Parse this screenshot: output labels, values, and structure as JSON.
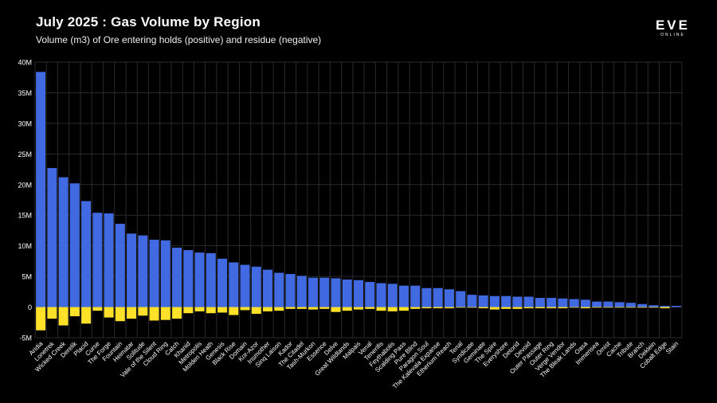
{
  "header": {
    "title": "July 2025 : Gas Volume by Region",
    "subtitle": "Volume (m3) of Ore entering holds (positive) and residue (negative)"
  },
  "logo": {
    "main": "EVE",
    "sub": "ONLINE"
  },
  "colors": {
    "background": "#000000",
    "positive": "#4169e1",
    "negative": "#ffe12a",
    "grid": "#2a2a2a",
    "text": "#ffffff"
  },
  "chart_data": {
    "type": "bar",
    "title": "July 2025 : Gas Volume by Region",
    "subtitle": "Volume (m3) of Ore entering holds (positive) and residue (negative)",
    "xlabel": "",
    "ylabel": "",
    "ylim": [
      -5000000,
      40000000
    ],
    "yticks": [
      -5000000,
      0,
      5000000,
      10000000,
      15000000,
      20000000,
      25000000,
      30000000,
      35000000,
      40000000
    ],
    "ytick_labels": [
      "-5M",
      "0",
      "5M",
      "10M",
      "15M",
      "20M",
      "25M",
      "30M",
      "35M",
      "40M"
    ],
    "grid": true,
    "legend": "none",
    "categories": [
      "Aridia",
      "Lonetrek",
      "Wicked Creek",
      "Derelik",
      "Placid",
      "Curse",
      "The Forge",
      "Fountain",
      "Heimatar",
      "Solitude",
      "Vale of the Silent",
      "Cloud Ring",
      "Catch",
      "Khanid",
      "Metropolis",
      "Molden Heath",
      "Genesis",
      "Black Rise",
      "Domain",
      "Kor-Azor",
      "Insmother",
      "Sinq Laison",
      "Kador",
      "The Citadel",
      "Tash-Murkon",
      "Essence",
      "Delve",
      "Great Wildlands",
      "Malpais",
      "Venal",
      "Tenerifis",
      "Feythabolis",
      "Scalding Pass",
      "Pure Blind",
      "Paragon Soul",
      "The Kalevala Expanse",
      "Etherium Reach",
      "Tenal",
      "Syndicate",
      "Geminate",
      "The Spire",
      "Everyshore",
      "Detorid",
      "Devoid",
      "Outer Passage",
      "Outer Ring",
      "Verge Vendor",
      "The Bleak Lands",
      "Oasa",
      "Immensea",
      "Omist",
      "Cache",
      "Tribute",
      "Branch",
      "Deklein",
      "Cobalt Edge",
      "Stain"
    ],
    "series": [
      {
        "name": "Volume entering holds",
        "values": [
          38400000,
          22700000,
          21200000,
          20200000,
          17300000,
          15400000,
          15300000,
          13600000,
          12000000,
          11700000,
          11000000,
          10900000,
          9700000,
          9300000,
          8900000,
          8800000,
          7900000,
          7300000,
          6900000,
          6600000,
          6100000,
          5600000,
          5400000,
          5100000,
          4800000,
          4800000,
          4700000,
          4500000,
          4400000,
          4100000,
          3900000,
          3800000,
          3500000,
          3500000,
          3100000,
          3100000,
          2900000,
          2600000,
          2000000,
          1900000,
          1800000,
          1800000,
          1700000,
          1700000,
          1500000,
          1500000,
          1400000,
          1300000,
          1200000,
          900000,
          900000,
          800000,
          700000,
          500000,
          300000,
          200000,
          200000
        ]
      },
      {
        "name": "Residue",
        "values": [
          -3800000,
          -1900000,
          -3000000,
          -1500000,
          -2700000,
          -600000,
          -1700000,
          -2300000,
          -1900000,
          -1400000,
          -2200000,
          -2100000,
          -1900000,
          -1000000,
          -700000,
          -1000000,
          -900000,
          -1300000,
          -500000,
          -1100000,
          -700000,
          -600000,
          -300000,
          -300000,
          -400000,
          -300000,
          -800000,
          -600000,
          -400000,
          -300000,
          -600000,
          -700000,
          -600000,
          -300000,
          -200000,
          -200000,
          -200000,
          -100000,
          -100000,
          -200000,
          -400000,
          -300000,
          -300000,
          -200000,
          -200000,
          -200000,
          -200000,
          -100000,
          -200000,
          -100000,
          -100000,
          -100000,
          -100000,
          -100000,
          -100000,
          -200000,
          0
        ]
      }
    ]
  }
}
